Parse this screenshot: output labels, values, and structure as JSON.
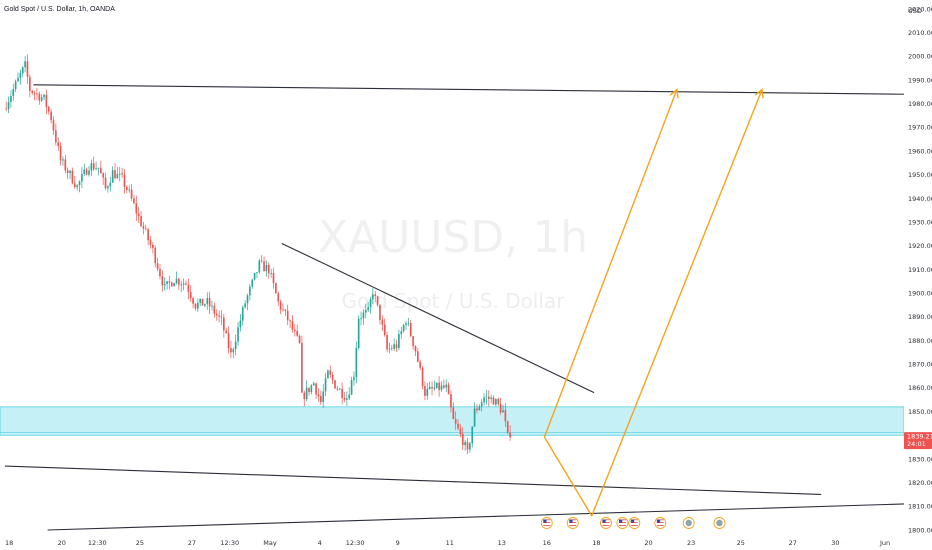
{
  "header": {
    "title": "Gold Spot / U.S. Dollar, 1h, OANDA"
  },
  "watermark": {
    "symbol": "XAUUSD, 1h",
    "description": "Gold Spot / U.S. Dollar"
  },
  "currency_label": "USD",
  "last_price": {
    "value": "1839.211",
    "countdown": "24:01",
    "color": "#ef5350"
  },
  "colors": {
    "up": "#26a69a",
    "down": "#ef5350",
    "trendline": "#2a2e39",
    "projection": "#f7a31c",
    "zone_fill": "#b2ebf2",
    "zone_border": "#4dd0e1"
  },
  "chart_data": {
    "type": "candlestick",
    "ylim": [
      1800,
      2020
    ],
    "y_ticks": [
      "2020.000",
      "2010.000",
      "2000.000",
      "1990.000",
      "1980.000",
      "1970.000",
      "1960.000",
      "1950.000",
      "1940.000",
      "1930.000",
      "1920.000",
      "1910.000",
      "1900.000",
      "1890.000",
      "1880.000",
      "1870.000",
      "1860.000",
      "1850.000",
      "1840.000",
      "1830.000",
      "1820.000",
      "1810.000",
      "1800.000"
    ],
    "x_ticks": [
      "18",
      "20",
      "12:30",
      "25",
      "27",
      "12:30",
      "May",
      "4",
      "12:30",
      "9",
      "11",
      "13",
      "16",
      "18",
      "20",
      "23",
      "25",
      "27",
      "30",
      "Jun"
    ],
    "x_tick_index": [
      0,
      24,
      39,
      57,
      79,
      95,
      112,
      133,
      148,
      166,
      188,
      210,
      229,
      250,
      272,
      290,
      311,
      333,
      351,
      372
    ],
    "bars_shown": 214,
    "bars_total": 380,
    "path_key_points": [
      [
        0,
        1978
      ],
      [
        5,
        1988
      ],
      [
        9,
        1996
      ],
      [
        11,
        1986
      ],
      [
        17,
        1982
      ],
      [
        20,
        1974
      ],
      [
        24,
        1956
      ],
      [
        28,
        1950
      ],
      [
        31,
        1945
      ],
      [
        36,
        1954
      ],
      [
        40,
        1953
      ],
      [
        43,
        1944
      ],
      [
        46,
        1951
      ],
      [
        50,
        1948
      ],
      [
        53,
        1942
      ],
      [
        57,
        1932
      ],
      [
        63,
        1918
      ],
      [
        68,
        1902
      ],
      [
        72,
        1906
      ],
      [
        77,
        1904
      ],
      [
        81,
        1895
      ],
      [
        86,
        1896
      ],
      [
        92,
        1888
      ],
      [
        96,
        1874
      ],
      [
        102,
        1896
      ],
      [
        108,
        1912
      ],
      [
        112,
        1910
      ],
      [
        116,
        1896
      ],
      [
        120,
        1889
      ],
      [
        125,
        1878
      ],
      [
        126,
        1856
      ],
      [
        131,
        1862
      ],
      [
        134,
        1854
      ],
      [
        137,
        1866
      ],
      [
        141,
        1860
      ],
      [
        145,
        1856
      ],
      [
        148,
        1866
      ],
      [
        150,
        1890
      ],
      [
        154,
        1892
      ],
      [
        156,
        1901
      ],
      [
        159,
        1890
      ],
      [
        162,
        1876
      ],
      [
        166,
        1878
      ],
      [
        170,
        1889
      ],
      [
        174,
        1876
      ],
      [
        178,
        1858
      ],
      [
        183,
        1860
      ],
      [
        187,
        1860
      ],
      [
        190,
        1846
      ],
      [
        194,
        1838
      ],
      [
        196,
        1832
      ],
      [
        199,
        1850
      ],
      [
        203,
        1856
      ],
      [
        207,
        1855
      ],
      [
        211,
        1850
      ],
      [
        213,
        1839
      ]
    ],
    "horizontal_lines": [
      {
        "name": "resistance-line",
        "x_index": [
          12,
          380
        ],
        "y": [
          1988,
          1984
        ]
      }
    ],
    "trendlines": [
      {
        "name": "descending-trendline",
        "x_index": [
          117,
          249
        ],
        "y": [
          1921,
          1858
        ]
      },
      {
        "name": "lower-channel-line",
        "x_index": [
          0,
          345
        ],
        "y": [
          1827,
          1815
        ]
      },
      {
        "name": "rising-support-line",
        "x_index": [
          18,
          380
        ],
        "y": [
          1800,
          1811
        ]
      }
    ],
    "zone": {
      "name": "demand-zone",
      "y": [
        1840,
        1852
      ]
    },
    "projections": [
      {
        "name": "projection-up-1",
        "points": [
          [
            228,
            1839.2
          ],
          [
            284,
            1986
          ]
        ]
      },
      {
        "name": "projection-down-up-2",
        "points": [
          [
            228,
            1839.2
          ],
          [
            248,
            1806
          ],
          [
            320,
            1986
          ]
        ]
      }
    ],
    "event_markers": [
      {
        "x_index": 229,
        "type": "flag"
      },
      {
        "x_index": 240,
        "type": "flag"
      },
      {
        "x_index": 254,
        "type": "flag"
      },
      {
        "x_index": 261,
        "type": "flag"
      },
      {
        "x_index": 266,
        "type": "flag"
      },
      {
        "x_index": 277,
        "type": "flag"
      },
      {
        "x_index": 289,
        "type": "dot"
      },
      {
        "x_index": 302,
        "type": "dot"
      }
    ]
  }
}
